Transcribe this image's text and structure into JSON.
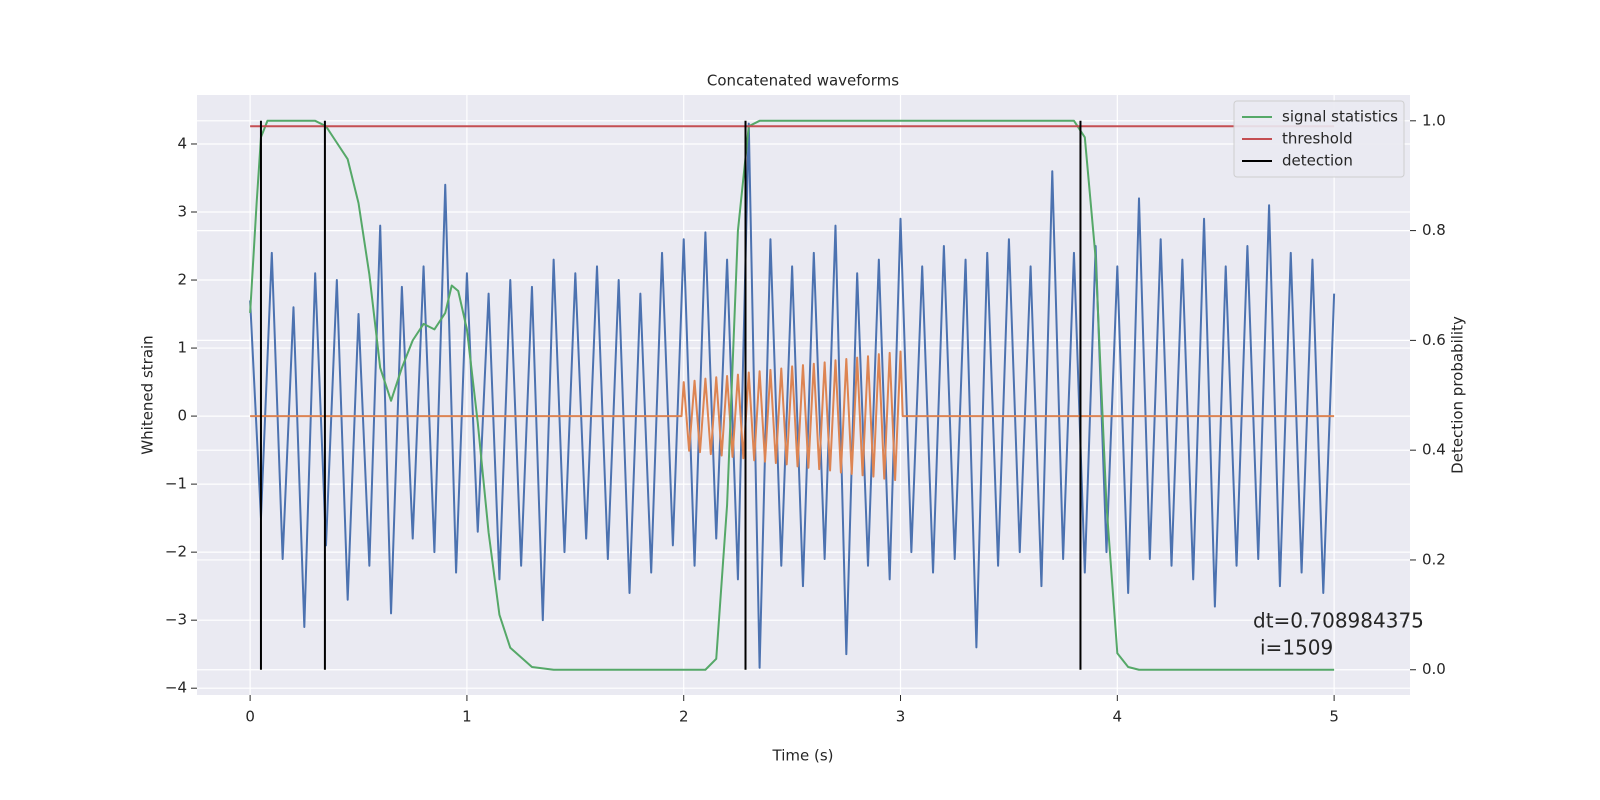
{
  "chart_data": {
    "type": "line",
    "title": "Concatenated waveforms",
    "xlabel": "Time (s)",
    "ylabel": "Whitened strain",
    "y2label": "Detection probability",
    "xlim": [
      -0.245,
      5.35
    ],
    "ylim": [
      -4.1,
      4.72
    ],
    "y2lim": [
      -0.046,
      1.047
    ],
    "xticks": [
      0,
      1,
      2,
      3,
      4,
      5
    ],
    "yticks": [
      {
        "value": -4,
        "label": "−4"
      },
      {
        "value": -3,
        "label": "−3"
      },
      {
        "value": -2,
        "label": "−2"
      },
      {
        "value": -1,
        "label": "−1"
      },
      0,
      1,
      2,
      3,
      4
    ],
    "y2ticks": [
      {
        "value": 0,
        "label": "0.0"
      },
      0.2,
      0.4,
      0.6,
      0.8,
      {
        "value": 1,
        "label": "1.0"
      }
    ],
    "grid": true,
    "legend": "upper right",
    "annotation": [
      "dt=0.708984375",
      "i=1509"
    ],
    "series": [
      {
        "color": "#4c72b0",
        "x": [
          0,
          0.05,
          0.1,
          0.15,
          0.2,
          0.25,
          0.3,
          0.35,
          0.4,
          0.45,
          0.5,
          0.55,
          0.6,
          0.65,
          0.7,
          0.75,
          0.8,
          0.85,
          0.9,
          0.95,
          1,
          1.05,
          1.1,
          1.15,
          1.2,
          1.25,
          1.3,
          1.35,
          1.4,
          1.45,
          1.5,
          1.55,
          1.6,
          1.65,
          1.7,
          1.75,
          1.8,
          1.85,
          1.9,
          1.95,
          2,
          2.05,
          2.1,
          2.15,
          2.2,
          2.25,
          2.3,
          2.35,
          2.4,
          2.45,
          2.5,
          2.55,
          2.6,
          2.65,
          2.7,
          2.75,
          2.8,
          2.85,
          2.9,
          2.95,
          3,
          3.05,
          3.1,
          3.15,
          3.2,
          3.25,
          3.3,
          3.35,
          3.4,
          3.45,
          3.5,
          3.55,
          3.6,
          3.65,
          3.7,
          3.75,
          3.8,
          3.85,
          3.9,
          3.95,
          4,
          4.05,
          4.1,
          4.15,
          4.2,
          4.25,
          4.3,
          4.35,
          4.4,
          4.45,
          4.5,
          4.55,
          4.6,
          4.65,
          4.7,
          4.75,
          4.8,
          4.85,
          4.9,
          4.95,
          5
        ],
        "values": [
          1.7,
          -1.5,
          2.4,
          -2.1,
          1.6,
          -3.1,
          2.1,
          -1.9,
          2.0,
          -2.7,
          1.5,
          -2.2,
          2.8,
          -2.9,
          1.9,
          -1.8,
          2.2,
          -2.0,
          3.4,
          -2.3,
          2.1,
          -1.7,
          1.8,
          -2.4,
          2.0,
          -2.2,
          1.9,
          -3.0,
          2.3,
          -2.0,
          2.1,
          -1.8,
          2.2,
          -2.1,
          2.0,
          -2.6,
          1.8,
          -2.3,
          2.4,
          -1.9,
          2.6,
          -2.2,
          2.7,
          -1.8,
          2.3,
          -2.4,
          4.3,
          -3.7,
          2.6,
          -2.2,
          2.2,
          -2.5,
          2.4,
          -2.1,
          2.8,
          -3.5,
          2.1,
          -2.2,
          2.3,
          -2.4,
          2.9,
          -2.0,
          2.2,
          -2.3,
          2.5,
          -2.1,
          2.3,
          -3.4,
          2.4,
          -2.2,
          2.6,
          -2.0,
          2.2,
          -2.5,
          3.6,
          -2.1,
          2.4,
          -2.3,
          2.5,
          -2.0,
          2.2,
          -2.6,
          3.2,
          -2.1,
          2.6,
          -2.2,
          2.3,
          -2.4,
          2.9,
          -2.8,
          2.2,
          -2.2,
          2.5,
          -2.1,
          3.1,
          -2.5,
          2.4,
          -2.3,
          2.3,
          -2.6,
          1.8
        ]
      },
      {
        "color": "#dd8452",
        "x": [
          0,
          1.99,
          2,
          2.025,
          2.05,
          2.075,
          2.1,
          2.125,
          2.15,
          2.175,
          2.2,
          2.225,
          2.25,
          2.275,
          2.3,
          2.325,
          2.35,
          2.375,
          2.4,
          2.425,
          2.45,
          2.475,
          2.5,
          2.525,
          2.55,
          2.575,
          2.6,
          2.625,
          2.65,
          2.675,
          2.7,
          2.725,
          2.75,
          2.775,
          2.8,
          2.825,
          2.85,
          2.875,
          2.9,
          2.925,
          2.95,
          2.975,
          3,
          3.01,
          5
        ],
        "values": [
          0,
          0,
          0.5,
          -0.51,
          0.52,
          -0.53,
          0.55,
          -0.56,
          0.57,
          -0.58,
          0.59,
          -0.6,
          0.61,
          -0.62,
          0.64,
          -0.65,
          0.66,
          -0.67,
          0.68,
          -0.69,
          0.7,
          -0.71,
          0.73,
          -0.74,
          0.75,
          -0.76,
          0.77,
          -0.78,
          0.79,
          -0.8,
          0.82,
          -0.83,
          0.84,
          -0.85,
          0.86,
          -0.87,
          0.88,
          -0.89,
          0.91,
          -0.92,
          0.93,
          -0.94,
          0.95,
          0,
          0
        ]
      },
      {
        "name": "signal statistics",
        "color": "#55a868",
        "axis": "y2",
        "x": [
          0,
          0.03,
          0.05,
          0.08,
          0.15,
          0.3,
          0.35,
          0.4,
          0.45,
          0.5,
          0.55,
          0.6,
          0.65,
          0.7,
          0.75,
          0.8,
          0.85,
          0.9,
          0.93,
          0.96,
          1.0,
          1.05,
          1.1,
          1.15,
          1.2,
          1.3,
          1.4,
          2.1,
          2.15,
          2.2,
          2.25,
          2.3,
          2.35,
          3.8,
          3.85,
          3.9,
          3.95,
          4.0,
          4.05,
          4.1,
          5.0
        ],
        "values": [
          0.65,
          0.85,
          0.97,
          1.0,
          1.0,
          1.0,
          0.99,
          0.96,
          0.93,
          0.85,
          0.72,
          0.55,
          0.49,
          0.55,
          0.6,
          0.63,
          0.62,
          0.65,
          0.7,
          0.69,
          0.62,
          0.45,
          0.25,
          0.1,
          0.04,
          0.005,
          0,
          0,
          0.02,
          0.3,
          0.8,
          0.99,
          1.0,
          1.0,
          0.97,
          0.75,
          0.3,
          0.03,
          0.005,
          0,
          0
        ]
      },
      {
        "name": "threshold",
        "color": "#c44e52",
        "axis": "y2",
        "x": [
          0,
          5
        ],
        "values": [
          0.99,
          0.99
        ]
      },
      {
        "name": "detection",
        "color": "#000000",
        "axis": "y2",
        "x": [
          0.05,
          0.345,
          2.285,
          3.83
        ],
        "span": [
          0,
          1
        ]
      }
    ]
  }
}
